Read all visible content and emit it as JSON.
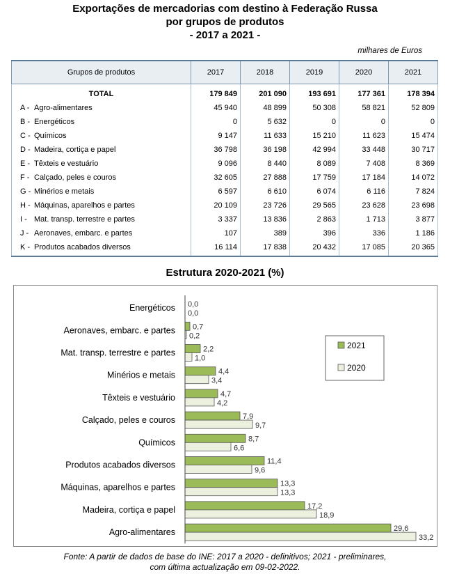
{
  "title_lines": [
    "Exportações de mercadorias com destino à Federação Russa",
    "por grupos de produtos",
    "- 2017 a 2021 -"
  ],
  "unit": "milhares de Euros",
  "table": {
    "header": [
      "Grupos de produtos",
      "2017",
      "2018",
      "2019",
      "2020",
      "2021"
    ],
    "total": {
      "label": "TOTAL",
      "values": [
        "179 849",
        "201 090",
        "193 691",
        "177 361",
        "178 394"
      ]
    },
    "rows": [
      {
        "code": "A -",
        "label": "Agro-alimentares",
        "values": [
          "45 940",
          "48 899",
          "50 308",
          "58 821",
          "52 809"
        ]
      },
      {
        "code": "B -",
        "label": "Energéticos",
        "values": [
          "0",
          "5 632",
          "0",
          "0",
          "0"
        ]
      },
      {
        "code": "C -",
        "label": "Químicos",
        "values": [
          "9 147",
          "11 633",
          "15 210",
          "11 623",
          "15 474"
        ]
      },
      {
        "code": "D -",
        "label": "Madeira, cortiça e papel",
        "values": [
          "36 798",
          "36 198",
          "42 994",
          "33 448",
          "30 717"
        ]
      },
      {
        "code": "E -",
        "label": "Têxteis e vestuário",
        "values": [
          "9 096",
          "8 440",
          "8 089",
          "7 408",
          "8 369"
        ]
      },
      {
        "code": "F -",
        "label": "Calçado, peles e couros",
        "values": [
          "32 605",
          "27 888",
          "17 759",
          "17 184",
          "14 072"
        ]
      },
      {
        "code": "G -",
        "label": "Minérios e metais",
        "values": [
          "6 597",
          "6 610",
          "6 074",
          "6 116",
          "7 824"
        ]
      },
      {
        "code": "H -",
        "label": "Máquinas, aparelhos e partes",
        "values": [
          "20 109",
          "23 726",
          "29 565",
          "23 628",
          "23 698"
        ]
      },
      {
        "code": "I -",
        "label": "Mat. transp. terrestre e partes",
        "values": [
          "3 337",
          "13 836",
          "2 863",
          "1 713",
          "3 877"
        ]
      },
      {
        "code": "J -",
        "label": "Aeronaves, embarc. e partes",
        "values": [
          "107",
          "389",
          "396",
          "336",
          "1 186"
        ]
      },
      {
        "code": "K -",
        "label": "Produtos acabados diversos",
        "values": [
          "16 114",
          "17 838",
          "20 432",
          "17 085",
          "20 365"
        ]
      }
    ]
  },
  "chart_subtitle": "Estrutura 2020-2021 (%)",
  "chart_data": {
    "type": "bar",
    "orientation": "horizontal",
    "title": "Estrutura 2020-2021 (%)",
    "categories": [
      "Energéticos",
      "Aeronaves, embarc. e partes",
      "Mat. transp. terrestre e partes",
      "Minérios e metais",
      "Têxteis e vestuário",
      "Calçado, peles e couros",
      "Químicos",
      "Produtos acabados diversos",
      "Máquinas, aparelhos e partes",
      "Madeira, cortiça e papel",
      "Agro-alimentares"
    ],
    "series": [
      {
        "name": "2021",
        "color": "#9bbb59",
        "values": [
          0.0,
          0.7,
          2.2,
          4.4,
          4.7,
          7.9,
          8.7,
          11.4,
          13.3,
          17.2,
          29.6
        ],
        "labels": [
          "0,0",
          "0,7",
          "2,2",
          "4,4",
          "4,7",
          "7,9",
          "8,7",
          "11,4",
          "13,3",
          "17,2",
          "29,6"
        ]
      },
      {
        "name": "2020",
        "color": "#ebf1de",
        "values": [
          0.0,
          0.2,
          1.0,
          3.4,
          4.2,
          9.7,
          6.6,
          9.6,
          13.3,
          18.9,
          33.2
        ],
        "labels": [
          "0,0",
          "0,2",
          "1,0",
          "3,4",
          "4,2",
          "9,7",
          "6,6",
          "9,6",
          "13,3",
          "18,9",
          "33,2"
        ]
      }
    ],
    "legend_position": "right",
    "grid": false
  },
  "source_lines": [
    "Fonte: A partir de dados de base do INE: 2017 a 2020 - definitivos; 2021 - preliminares,",
    "com última actualização em 09-02-2022."
  ]
}
